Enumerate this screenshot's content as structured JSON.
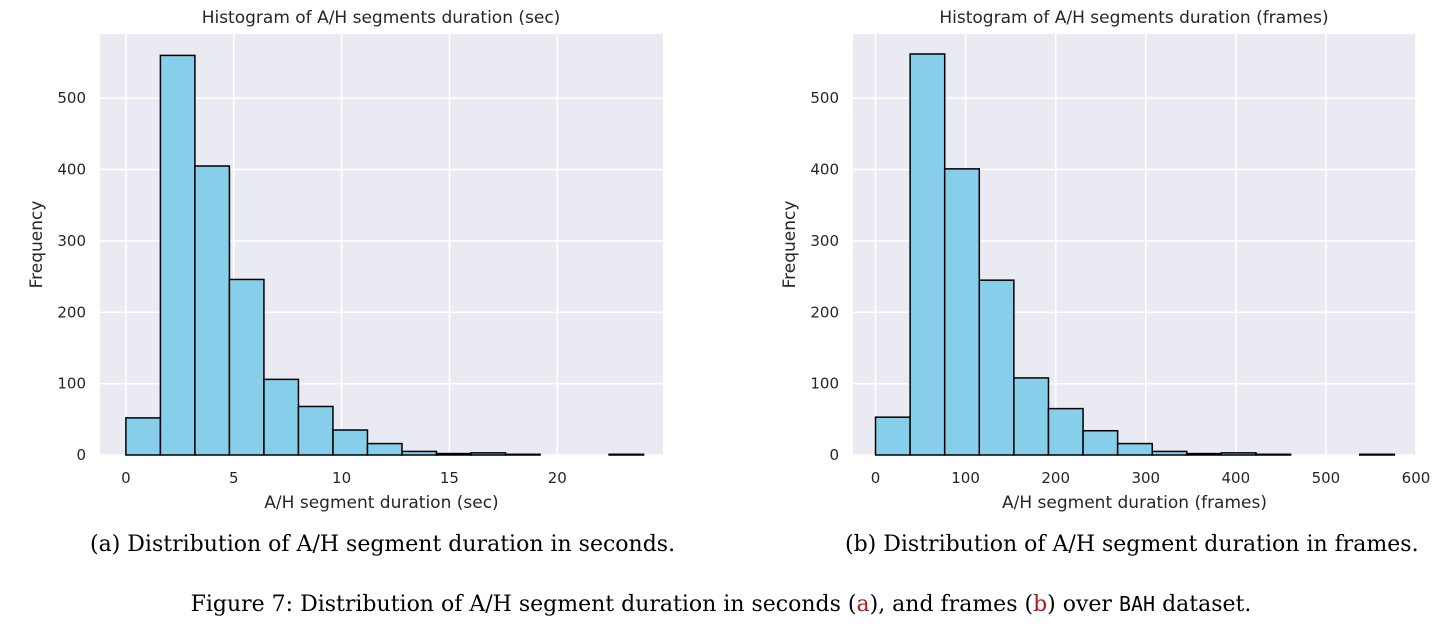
{
  "chart_data": [
    {
      "type": "bar",
      "title": "Histogram of A/H segments duration (sec)",
      "xlabel": "A/H segment duration (sec)",
      "ylabel": "Frequency",
      "xlim": [
        -1.2,
        24.9
      ],
      "ylim": [
        0,
        590
      ],
      "xticks": [
        0,
        5,
        10,
        15,
        20
      ],
      "yticks": [
        0,
        100,
        200,
        300,
        400,
        500
      ],
      "bin_edges": [
        0,
        1.6,
        3.2,
        4.8,
        6.4,
        8.0,
        9.6,
        11.2,
        12.8,
        14.4,
        16.0,
        17.6,
        19.2,
        20.8,
        22.4,
        24.0
      ],
      "values": [
        52,
        560,
        405,
        246,
        106,
        68,
        35,
        16,
        5,
        2,
        3,
        1,
        0,
        0,
        1
      ],
      "grid": true,
      "bar_color": "#87ceeb"
    },
    {
      "type": "bar",
      "title": "Histogram of A/H segments duration (frames)",
      "xlabel": "A/H segment duration (frames)",
      "ylabel": "Frequency",
      "xlim": [
        -25,
        600
      ],
      "ylim": [
        0,
        590
      ],
      "xticks": [
        0,
        100,
        200,
        300,
        400,
        500,
        600
      ],
      "yticks": [
        0,
        100,
        200,
        300,
        400,
        500
      ],
      "bin_edges": [
        0,
        38.4,
        76.8,
        115.2,
        153.6,
        192.0,
        230.4,
        268.8,
        307.2,
        345.6,
        384.0,
        422.4,
        460.8,
        499.2,
        537.6,
        576.0
      ],
      "values": [
        53,
        562,
        401,
        245,
        108,
        65,
        34,
        16,
        5,
        2,
        3,
        1,
        0,
        0,
        1
      ],
      "grid": true,
      "bar_color": "#87ceeb"
    }
  ],
  "captions": {
    "a": "(a) Distribution of A/H segment duration in seconds.",
    "b": "(b) Distribution of A/H segment duration in frames.",
    "figure_prefix": "Figure 7: Distribution of A/H segment duration in seconds (",
    "ref_a": "a",
    "figure_mid": "), and frames (",
    "ref_b": "b",
    "figure_suffix": ") over",
    "dataset": "BAH",
    "figure_end": "dataset."
  }
}
